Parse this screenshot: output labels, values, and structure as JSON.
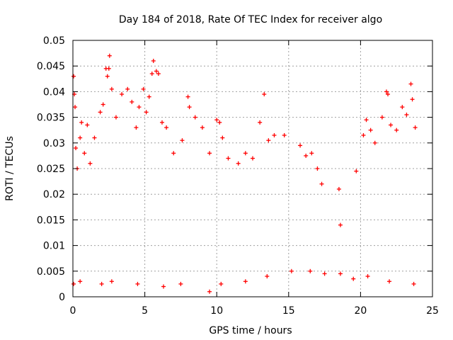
{
  "chart_data": {
    "type": "scatter",
    "title": "Day 184 of 2018, Rate Of TEC Index for receiver algo",
    "xlabel": "GPS time / hours",
    "ylabel": "ROTI / TECUs",
    "xlim": [
      0,
      25
    ],
    "ylim": [
      0,
      0.05
    ],
    "xticks": [
      "0",
      "5",
      "10",
      "15",
      "20",
      "25"
    ],
    "yticks": [
      "0",
      "0.005",
      "0.01",
      "0.015",
      "0.02",
      "0.025",
      "0.03",
      "0.035",
      "0.04",
      "0.045",
      "0.05"
    ],
    "grid": true,
    "marker": "+",
    "color": "#ff0000",
    "series": [
      {
        "name": "ROTI",
        "points": [
          [
            0.05,
            0.043
          ],
          [
            0.1,
            0.0395
          ],
          [
            0.15,
            0.037
          ],
          [
            0.2,
            0.029
          ],
          [
            0.3,
            0.025
          ],
          [
            0.5,
            0.031
          ],
          [
            0.6,
            0.034
          ],
          [
            0.8,
            0.028
          ],
          [
            1.0,
            0.0335
          ],
          [
            1.2,
            0.026
          ],
          [
            1.5,
            0.031
          ],
          [
            1.9,
            0.036
          ],
          [
            2.1,
            0.0375
          ],
          [
            2.3,
            0.0445
          ],
          [
            2.4,
            0.043
          ],
          [
            2.5,
            0.0445
          ],
          [
            2.55,
            0.047
          ],
          [
            2.7,
            0.0405
          ],
          [
            3.0,
            0.035
          ],
          [
            3.4,
            0.0395
          ],
          [
            3.8,
            0.0405
          ],
          [
            4.1,
            0.038
          ],
          [
            4.4,
            0.033
          ],
          [
            4.6,
            0.037
          ],
          [
            4.9,
            0.0405
          ],
          [
            5.1,
            0.036
          ],
          [
            5.3,
            0.039
          ],
          [
            5.5,
            0.0435
          ],
          [
            5.6,
            0.046
          ],
          [
            5.8,
            0.044
          ],
          [
            5.95,
            0.0435
          ],
          [
            6.2,
            0.034
          ],
          [
            6.5,
            0.033
          ],
          [
            7.0,
            0.028
          ],
          [
            7.6,
            0.0305
          ],
          [
            8.0,
            0.039
          ],
          [
            8.1,
            0.037
          ],
          [
            8.5,
            0.035
          ],
          [
            9.0,
            0.033
          ],
          [
            9.5,
            0.028
          ],
          [
            10.0,
            0.0345
          ],
          [
            10.2,
            0.034
          ],
          [
            10.4,
            0.031
          ],
          [
            10.8,
            0.027
          ],
          [
            11.5,
            0.026
          ],
          [
            12.0,
            0.028
          ],
          [
            12.5,
            0.027
          ],
          [
            13.0,
            0.034
          ],
          [
            13.3,
            0.0395
          ],
          [
            13.6,
            0.0305
          ],
          [
            14.0,
            0.0315
          ],
          [
            14.7,
            0.0315
          ],
          [
            15.8,
            0.0295
          ],
          [
            16.2,
            0.0275
          ],
          [
            16.6,
            0.028
          ],
          [
            17.0,
            0.025
          ],
          [
            17.3,
            0.022
          ],
          [
            18.5,
            0.021
          ],
          [
            18.6,
            0.014
          ],
          [
            19.7,
            0.0245
          ],
          [
            20.2,
            0.0315
          ],
          [
            20.4,
            0.0345
          ],
          [
            20.7,
            0.0325
          ],
          [
            21.0,
            0.03
          ],
          [
            21.5,
            0.035
          ],
          [
            21.8,
            0.04
          ],
          [
            21.9,
            0.0395
          ],
          [
            22.1,
            0.0335
          ],
          [
            22.5,
            0.0325
          ],
          [
            22.9,
            0.037
          ],
          [
            23.2,
            0.0355
          ],
          [
            23.5,
            0.0415
          ],
          [
            23.6,
            0.0385
          ],
          [
            23.8,
            0.033
          ],
          [
            0.05,
            0.0025
          ],
          [
            0.5,
            0.003
          ],
          [
            2.0,
            0.0025
          ],
          [
            2.7,
            0.003
          ],
          [
            4.5,
            0.0025
          ],
          [
            6.3,
            0.002
          ],
          [
            7.5,
            0.0025
          ],
          [
            9.5,
            0.001
          ],
          [
            10.3,
            0.0025
          ],
          [
            12.0,
            0.003
          ],
          [
            13.5,
            0.004
          ],
          [
            15.2,
            0.005
          ],
          [
            16.5,
            0.005
          ],
          [
            17.5,
            0.0045
          ],
          [
            18.6,
            0.0045
          ],
          [
            19.5,
            0.0035
          ],
          [
            20.5,
            0.004
          ],
          [
            22.0,
            0.003
          ],
          [
            23.7,
            0.0025
          ]
        ]
      }
    ]
  }
}
